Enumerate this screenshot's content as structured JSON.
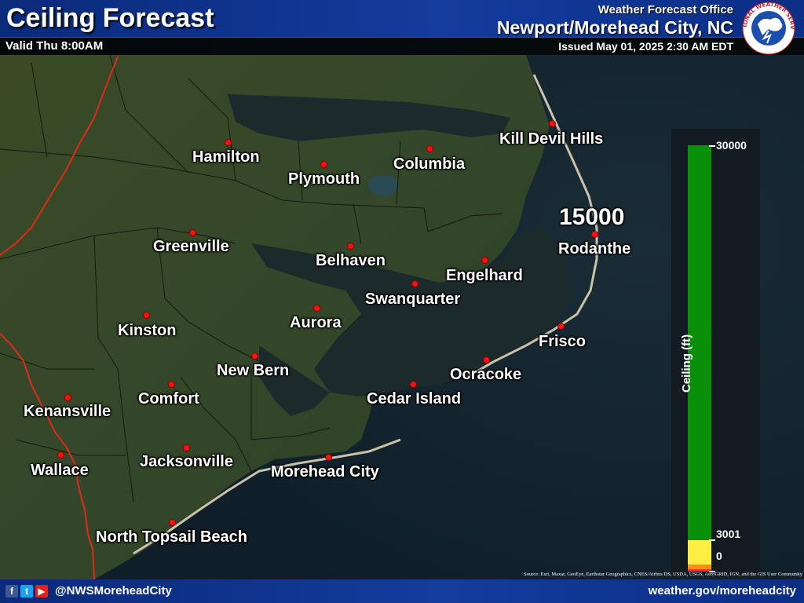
{
  "header": {
    "title": "Ceiling Forecast",
    "valid": "Valid Thu 8:00AM",
    "wfo_label": "Weather Forecast Office",
    "wfo_name": "Newport/Morehead City, NC",
    "issued": "Issued May 01, 2025 2:30 AM EDT",
    "logo_text": "NATIONAL WEATHER SERVICE"
  },
  "cities": [
    {
      "id": "hamilton",
      "name": "Hamilton"
    },
    {
      "id": "plymouth",
      "name": "Plymouth"
    },
    {
      "id": "columbia",
      "name": "Columbia"
    },
    {
      "id": "kill-devil-hills",
      "name": "Kill Devil Hills"
    },
    {
      "id": "greenville",
      "name": "Greenville"
    },
    {
      "id": "belhaven",
      "name": "Belhaven"
    },
    {
      "id": "engelhard",
      "name": "Engelhard"
    },
    {
      "id": "rodanthe",
      "name": "Rodanthe"
    },
    {
      "id": "swanquarter",
      "name": "Swanquarter"
    },
    {
      "id": "aurora",
      "name": "Aurora"
    },
    {
      "id": "kinston",
      "name": "Kinston"
    },
    {
      "id": "frisco",
      "name": "Frisco"
    },
    {
      "id": "new-bern",
      "name": "New Bern"
    },
    {
      "id": "ocracoke",
      "name": "Ocracoke"
    },
    {
      "id": "comfort",
      "name": "Comfort"
    },
    {
      "id": "cedar-island",
      "name": "Cedar Island"
    },
    {
      "id": "kenansville",
      "name": "Kenansville"
    },
    {
      "id": "jacksonville",
      "name": "Jacksonville"
    },
    {
      "id": "wallace",
      "name": "Wallace"
    },
    {
      "id": "morehead-city",
      "name": "Morehead City"
    },
    {
      "id": "north-topsail-beach",
      "name": "North Topsail Beach"
    }
  ],
  "forecast_value": {
    "location": "Rodanthe",
    "value": "15000"
  },
  "legend": {
    "title": "Ceiling (ft)",
    "ticks": [
      "30000",
      "3001",
      "0"
    ],
    "colors": {
      "high": "#0a8f0a",
      "mid": "#ffee44",
      "low": "#ff8c1a",
      "lowest": "#ff2255"
    }
  },
  "attribution": "Source: Esri, Maxar, GeoEye, Earthstar Geographics, CNES/Airbus DS, USDA, USGS, AeroGRID, IGN, and the GIS User Community",
  "footer": {
    "handle": "@NWSMoreheadCity",
    "site": "weather.gov/moreheadcity",
    "icons": [
      "facebook-icon",
      "twitter-icon",
      "youtube-icon"
    ]
  }
}
